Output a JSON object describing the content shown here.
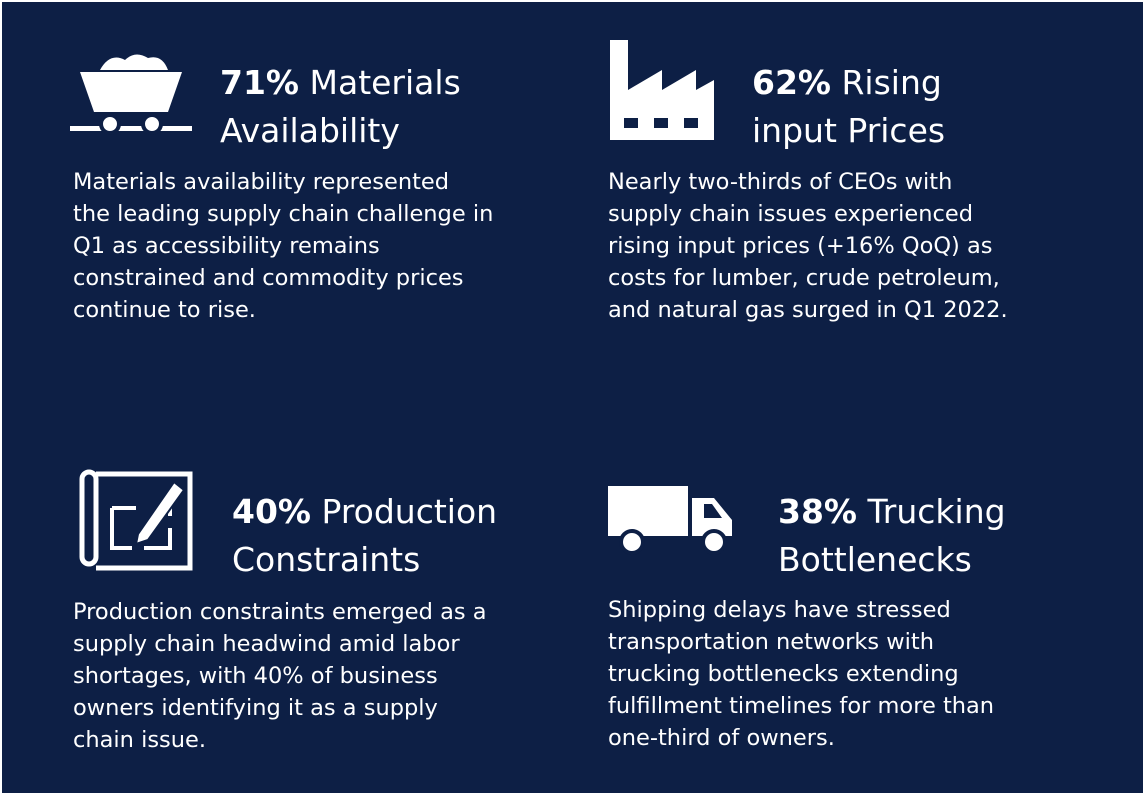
{
  "cards": [
    {
      "percent": "71%",
      "title_lines": [
        "Materials",
        "Availability"
      ],
      "body_lines": [
        "Materials availability represented",
        "the leading supply chain challenge in",
        "Q1 as accessibility remains",
        "constrained and commodity prices",
        "continue to rise."
      ]
    },
    {
      "percent": "62%",
      "title_lines": [
        "Rising",
        "input Prices"
      ],
      "body_lines": [
        "Nearly two-thirds of CEOs with",
        "supply chain issues experienced",
        "rising input prices (+16% QoQ) as",
        "costs for lumber, crude petroleum,",
        "and natural gas surged in Q1 2022."
      ]
    },
    {
      "percent": "40%",
      "title_lines": [
        "Production",
        "Constraints"
      ],
      "body_lines": [
        "Production constraints emerged as a",
        "supply chain headwind amid labor",
        "shortages, with 40% of business",
        "owners identifying it as a supply",
        "chain issue."
      ]
    },
    {
      "percent": "38%",
      "title_lines": [
        "Trucking",
        "Bottlenecks"
      ],
      "body_lines": [
        "Shipping delays have stressed",
        "transportation networks with",
        "trucking bottlenecks extending",
        "fulfillment timelines for more than",
        "one-third of owners."
      ]
    }
  ]
}
